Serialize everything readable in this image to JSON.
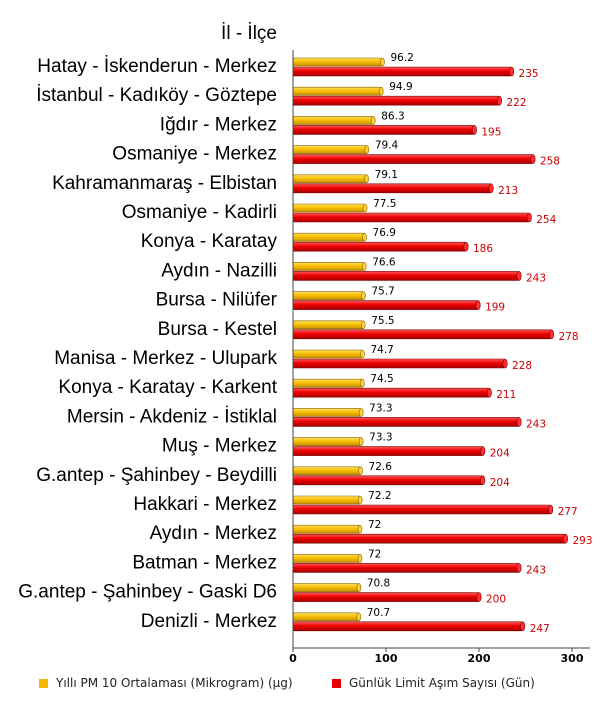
{
  "chart_data": {
    "type": "bar",
    "orientation": "horizontal",
    "category_header": "İl - İlçe",
    "categories": [
      "Hatay - İskenderun - Merkez",
      "İstanbul - Kadıköy - Göztepe",
      "Iğdır - Merkez",
      "Osmaniye - Merkez",
      "Kahramanmaraş - Elbistan",
      "Osmaniye - Kadirli",
      "Konya - Karatay",
      "Aydın - Nazilli",
      "Bursa - Nilüfer",
      "Bursa - Kestel",
      "Manisa - Merkez - Ulupark",
      "Konya - Karatay - Karkent",
      "Mersin - Akdeniz - İstiklal",
      "Muş - Merkez",
      "G.antep - Şahinbey - Beydilli",
      "Hakkari - Merkez",
      "Aydın - Merkez",
      "Batman - Merkez",
      "G.antep - Şahinbey - Gaski D6",
      "Denizli - Merkez"
    ],
    "series": [
      {
        "name": "Yıllı PM 10 Ortalaması (Mikrogram) (µg)",
        "color": "#f5b800",
        "values": [
          96.2,
          94.9,
          86.3,
          79.4,
          79.1,
          77.5,
          76.9,
          76.6,
          75.7,
          75.5,
          74.7,
          74.5,
          73.3,
          73.3,
          72.6,
          72.2,
          72,
          72,
          70.8,
          70.7
        ],
        "labels": [
          "96.2",
          "94.9",
          "86.3",
          "79.4",
          "79.1",
          "77.5",
          "76.9",
          "76.6",
          "75.7",
          "75.5",
          "74.7",
          "74.5",
          "73.3",
          "73.3",
          "72.6",
          "72.2",
          "72",
          "72",
          "70.8",
          "70.7"
        ]
      },
      {
        "name": "Günlük Limit Aşım Sayısı (Gün)",
        "color": "#e60000",
        "values": [
          235,
          222,
          195,
          258,
          213,
          254,
          186,
          243,
          199,
          278,
          228,
          211,
          243,
          204,
          204,
          277,
          293,
          243,
          200,
          247
        ],
        "labels": [
          "235",
          "222",
          "195",
          "258",
          "213",
          "254",
          "186",
          "243",
          "199",
          "278",
          "228",
          "211",
          "243",
          "204",
          "204",
          "277",
          "293",
          "243",
          "200",
          "247"
        ]
      }
    ],
    "xlim": [
      0,
      300
    ],
    "xticks": [
      "0",
      "100",
      "200",
      "300"
    ],
    "grid": false,
    "legend_position": "bottom"
  }
}
